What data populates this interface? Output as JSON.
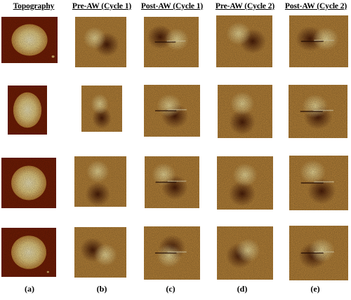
{
  "figure": {
    "headers": [
      "Topography",
      "Pre-AW (Cycle 1)",
      "Post-AW (Cycle 1)",
      "Pre-AW (Cycle 2)",
      "Post-AW (Cycle 2)"
    ],
    "panel_labels": [
      "(a)",
      "(b)",
      "(c)",
      "(d)",
      "(e)"
    ],
    "colors": {
      "topo_background": "#7a1f05",
      "topo_particle": "#f4d98a",
      "mfm_background": "#c18a3c",
      "mfm_bright": "#fbe7a0",
      "mfm_dark": "#4a1a06"
    }
  }
}
